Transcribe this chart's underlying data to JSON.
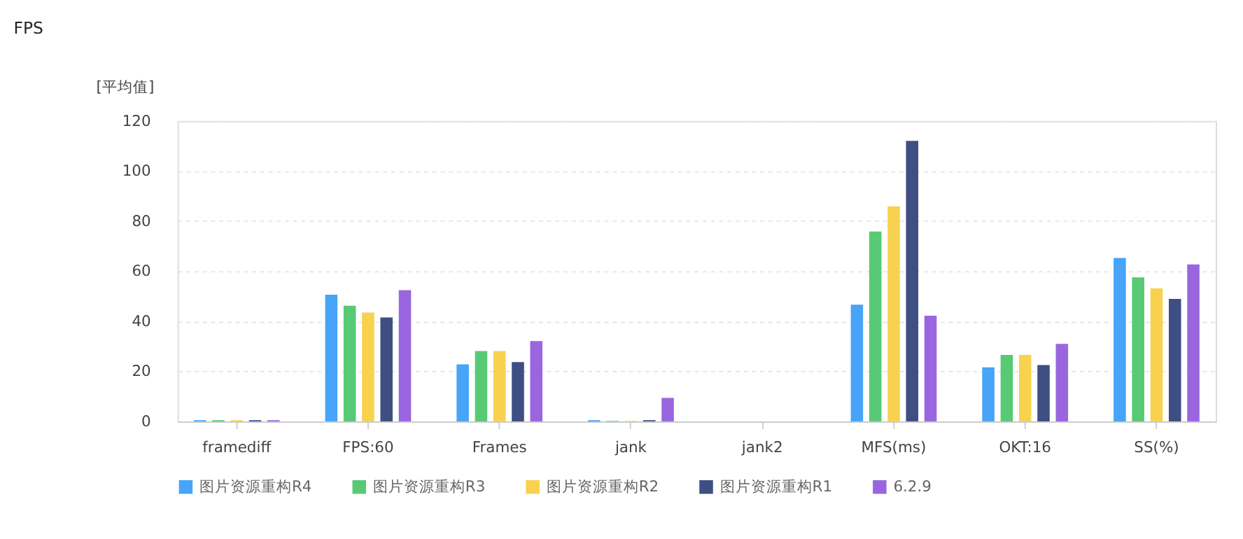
{
  "chart_data": {
    "type": "bar",
    "title": "FPS",
    "ylabel": "[平均值]",
    "categories": [
      "framediff",
      "FPS:60",
      "Frames",
      "jank",
      "jank2",
      "MFS(ms)",
      "OKT:16",
      "SS(%)"
    ],
    "series": [
      {
        "name": "图片资源重构R4",
        "color": "#47a4f8",
        "values": [
          0.5,
          50.6,
          22.8,
          0.5,
          0,
          46.6,
          21.6,
          65.3
        ]
      },
      {
        "name": "图片资源重构R3",
        "color": "#58c974",
        "values": [
          0.5,
          46.2,
          28.1,
          0.2,
          0,
          75.8,
          26.6,
          57.5
        ]
      },
      {
        "name": "图片资源重构R2",
        "color": "#f8d14f",
        "values": [
          0.5,
          43.5,
          28.1,
          0.2,
          0,
          85.9,
          26.6,
          53.1
        ]
      },
      {
        "name": "图片资源重构R1",
        "color": "#3f4f84",
        "values": [
          0.5,
          41.5,
          23.7,
          0.5,
          0,
          112,
          22.5,
          48.9
        ]
      },
      {
        "name": "6.2.9",
        "color": "#9a66e0",
        "values": [
          0.5,
          52.4,
          32.1,
          9.4,
          0,
          42.2,
          31,
          62.7
        ]
      }
    ],
    "ylim": [
      0,
      120
    ],
    "yticks": [
      0,
      20,
      40,
      60,
      80,
      100,
      120
    ],
    "grid": "y",
    "legend": "bottom"
  }
}
